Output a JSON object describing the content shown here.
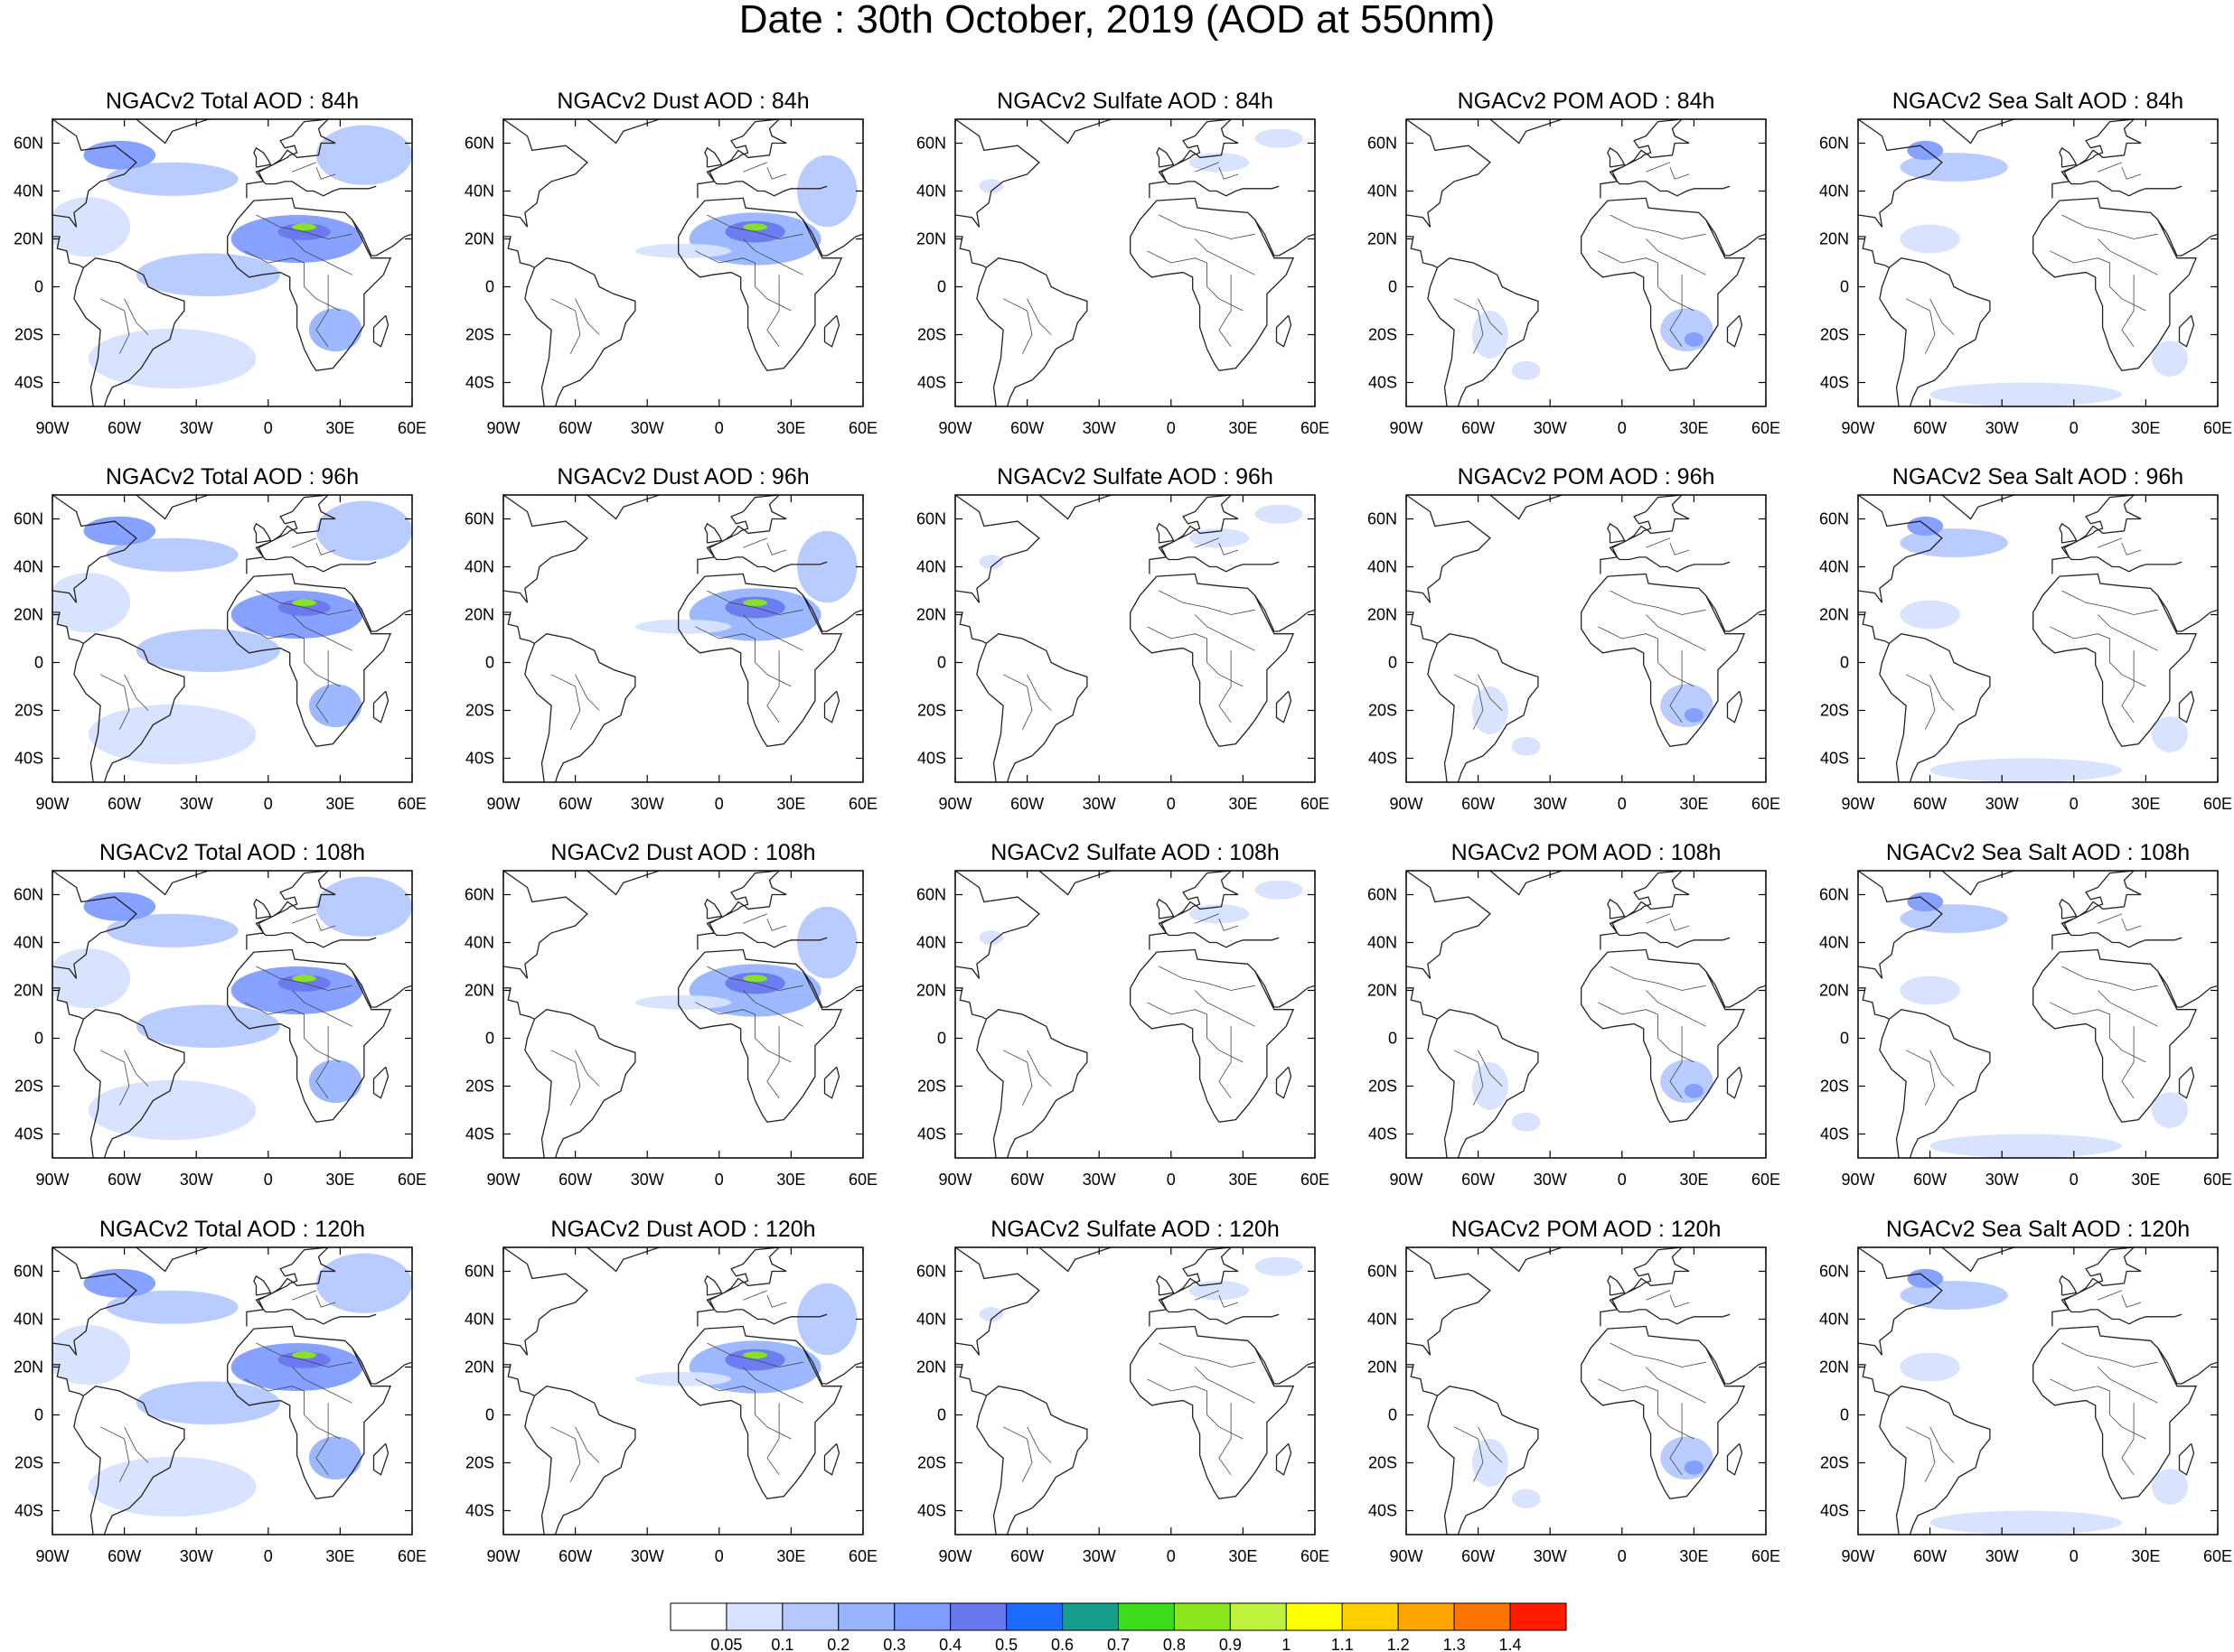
{
  "title": "Date : 30th October, 2019 (AOD at 550nm)",
  "products": [
    "Total",
    "Dust",
    "Sulfate",
    "POM",
    "Sea Salt"
  ],
  "lead_times": [
    "84h",
    "96h",
    "108h",
    "120h"
  ],
  "panel_titles": [
    [
      "NGACv2 Total AOD : 84h",
      "NGACv2 Dust AOD : 84h",
      "NGACv2 Sulfate AOD : 84h",
      "NGACv2 POM AOD : 84h",
      "NGACv2 Sea Salt AOD : 84h"
    ],
    [
      "NGACv2 Total AOD : 96h",
      "NGACv2 Dust AOD : 96h",
      "NGACv2 Sulfate AOD : 96h",
      "NGACv2 POM AOD : 96h",
      "NGACv2 Sea Salt AOD : 96h"
    ],
    [
      "NGACv2 Total AOD : 108h",
      "NGACv2 Dust AOD : 108h",
      "NGACv2 Sulfate AOD : 108h",
      "NGACv2 POM AOD : 108h",
      "NGACv2 Sea Salt AOD : 108h"
    ],
    [
      "NGACv2 Total AOD : 120h",
      "NGACv2 Dust AOD : 120h",
      "NGACv2 Sulfate AOD : 120h",
      "NGACv2 POM AOD : 120h",
      "NGACv2 Sea Salt  AOD : 120h"
    ]
  ],
  "map_extent": {
    "lon_min": -90,
    "lon_max": 60,
    "lat_min": -50,
    "lat_max": 70
  },
  "lon_ticks": [
    {
      "value": -90,
      "label": "90W"
    },
    {
      "value": -60,
      "label": "60W"
    },
    {
      "value": -30,
      "label": "30W"
    },
    {
      "value": 0,
      "label": "0"
    },
    {
      "value": 30,
      "label": "30E"
    },
    {
      "value": 60,
      "label": "60E"
    }
  ],
  "lat_ticks": [
    {
      "value": 60,
      "label": "60N"
    },
    {
      "value": 40,
      "label": "40N"
    },
    {
      "value": 20,
      "label": "20N"
    },
    {
      "value": 0,
      "label": "0"
    },
    {
      "value": -20,
      "label": "20S"
    },
    {
      "value": -40,
      "label": "40S"
    }
  ],
  "colorbar": {
    "levels": [
      "0.05",
      "0.1",
      "0.2",
      "0.3",
      "0.4",
      "0.5",
      "0.6",
      "0.7",
      "0.8",
      "0.9",
      "1",
      "1.1",
      "1.2",
      "1.3",
      "1.4"
    ],
    "colors": [
      "#ffffff",
      "#d6e2ff",
      "#b5c9ff",
      "#98b4ff",
      "#7f9cff",
      "#6a78ee",
      "#1e6cff",
      "#169d8c",
      "#3ddb1b",
      "#8be61d",
      "#bff23c",
      "#ffff00",
      "#ffd000",
      "#ffa500",
      "#ff7300",
      "#ff1a00"
    ]
  },
  "aerosol_features": {
    "Total": [
      {
        "lon": -40,
        "lat": 45,
        "w": 55,
        "h": 14,
        "level": 2
      },
      {
        "lon": -62,
        "lat": 55,
        "w": 30,
        "h": 12,
        "level": 4
      },
      {
        "lon": 12,
        "lat": 20,
        "w": 55,
        "h": 20,
        "level": 4
      },
      {
        "lon": 15,
        "lat": 23,
        "w": 22,
        "h": 7,
        "level": 5
      },
      {
        "lon": 15,
        "lat": 25,
        "w": 10,
        "h": 3,
        "level": 9
      },
      {
        "lon": -25,
        "lat": 5,
        "w": 60,
        "h": 18,
        "level": 2
      },
      {
        "lon": 28,
        "lat": -18,
        "w": 22,
        "h": 18,
        "level": 3
      },
      {
        "lon": -40,
        "lat": -30,
        "w": 70,
        "h": 25,
        "level": 1
      },
      {
        "lon": 40,
        "lat": 55,
        "w": 40,
        "h": 25,
        "level": 2
      },
      {
        "lon": -75,
        "lat": 25,
        "w": 35,
        "h": 25,
        "level": 1
      }
    ],
    "Dust": [
      {
        "lon": 15,
        "lat": 20,
        "w": 55,
        "h": 22,
        "level": 3
      },
      {
        "lon": 15,
        "lat": 23,
        "w": 25,
        "h": 9,
        "level": 5
      },
      {
        "lon": 15,
        "lat": 25,
        "w": 10,
        "h": 3,
        "level": 9
      },
      {
        "lon": -15,
        "lat": 15,
        "w": 40,
        "h": 6,
        "level": 1
      },
      {
        "lon": 45,
        "lat": 40,
        "w": 25,
        "h": 30,
        "level": 2
      }
    ],
    "Sulfate": [
      {
        "lon": 20,
        "lat": 52,
        "w": 25,
        "h": 8,
        "level": 1
      },
      {
        "lon": 45,
        "lat": 62,
        "w": 20,
        "h": 8,
        "level": 1
      },
      {
        "lon": -75,
        "lat": 42,
        "w": 10,
        "h": 6,
        "level": 1
      }
    ],
    "POM": [
      {
        "lon": 27,
        "lat": -18,
        "w": 22,
        "h": 18,
        "level": 2
      },
      {
        "lon": 30,
        "lat": -22,
        "w": 8,
        "h": 6,
        "level": 4
      },
      {
        "lon": -55,
        "lat": -20,
        "w": 15,
        "h": 20,
        "level": 1
      },
      {
        "lon": -40,
        "lat": -35,
        "w": 12,
        "h": 8,
        "level": 1
      }
    ],
    "Sea Salt": [
      {
        "lon": -50,
        "lat": 50,
        "w": 45,
        "h": 12,
        "level": 2
      },
      {
        "lon": -62,
        "lat": 57,
        "w": 15,
        "h": 8,
        "level": 4
      },
      {
        "lon": -20,
        "lat": -45,
        "w": 80,
        "h": 10,
        "level": 1
      },
      {
        "lon": -60,
        "lat": 20,
        "w": 25,
        "h": 12,
        "level": 1
      },
      {
        "lon": 40,
        "lat": -30,
        "w": 15,
        "h": 15,
        "level": 1
      }
    ]
  }
}
